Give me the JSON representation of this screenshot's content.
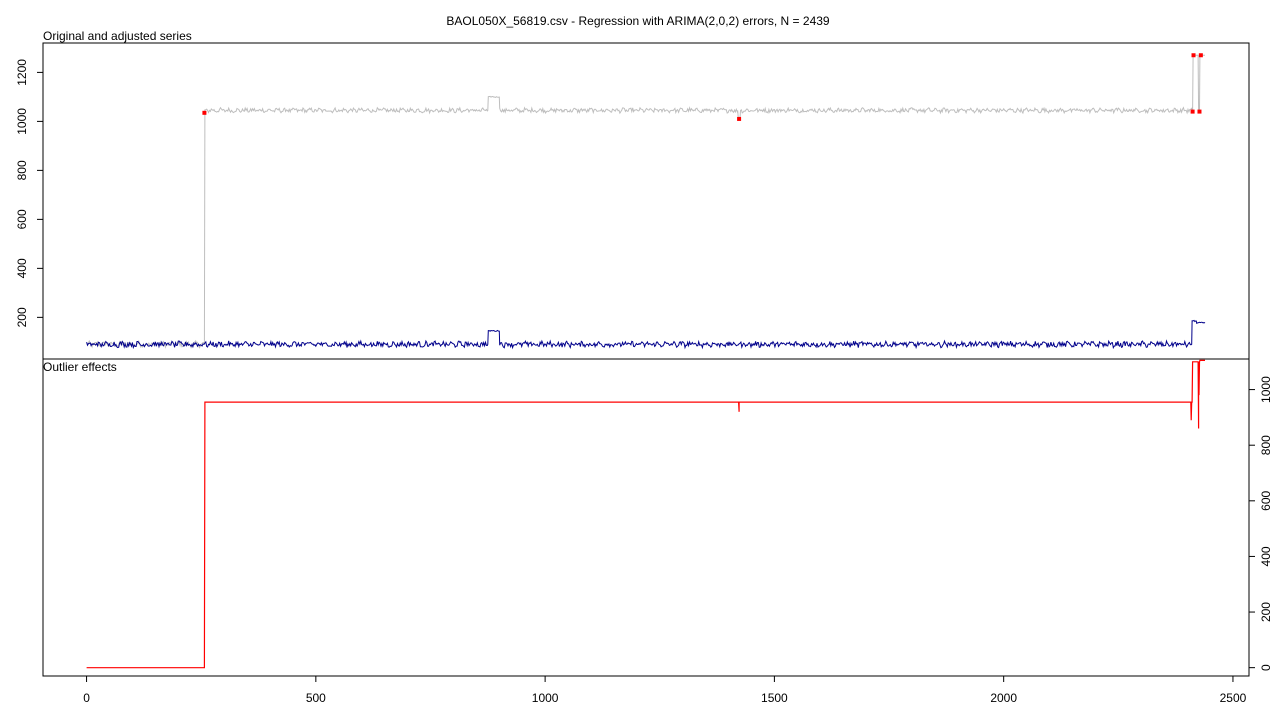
{
  "title": "BAOL050X_56819.csv - Regression with ARIMA(2,0,2) errors, N = 2439",
  "chart_data": [
    {
      "type": "line",
      "title": "Original and adjusted series",
      "xlim": [
        -95,
        2535
      ],
      "ylim": [
        30,
        1320
      ],
      "x_ticks": [
        0,
        500,
        1000,
        1500,
        2000,
        2500
      ],
      "y_ticks": [
        200,
        400,
        600,
        800,
        1000,
        1200
      ],
      "y_axis_side": "left",
      "colors": {
        "original": "#bebebe",
        "adjusted": "#00008b",
        "outlier_points": "#ff0000"
      },
      "series": [
        {
          "role": "original",
          "segments": [
            {
              "x": [
                0,
                257
              ],
              "base": 90,
              "noise": 10
            },
            {
              "x": [
                258,
                875
              ],
              "base": 1045,
              "noise": 8
            },
            {
              "x": [
                876,
                900
              ],
              "base": 1100,
              "noise": 2
            },
            {
              "x": [
                901,
                1420
              ],
              "base": 1045,
              "noise": 8
            },
            {
              "x": [
                1421,
                1425
              ],
              "base": 1015,
              "noise": 3
            },
            {
              "x": [
                1426,
                2410
              ],
              "base": 1045,
              "noise": 8
            },
            {
              "x": [
                2411,
                2412
              ],
              "base": 1040,
              "noise": 0
            },
            {
              "x": [
                2413,
                2424
              ],
              "base": 1270,
              "noise": 0
            },
            {
              "x": [
                2425,
                2427
              ],
              "base": 1040,
              "noise": 0
            },
            {
              "x": [
                2428,
                2439
              ],
              "base": 1270,
              "noise": 0
            }
          ]
        },
        {
          "role": "adjusted",
          "segments": [
            {
              "x": [
                0,
                875
              ],
              "base": 90,
              "noise": 10
            },
            {
              "x": [
                876,
                900
              ],
              "base": 145,
              "noise": 2
            },
            {
              "x": [
                901,
                2410
              ],
              "base": 90,
              "noise": 10
            },
            {
              "x": [
                2411,
                2420
              ],
              "base": 185,
              "noise": 3
            },
            {
              "x": [
                2421,
                2439
              ],
              "base": 178,
              "noise": 2
            }
          ]
        }
      ],
      "outlier_points": [
        {
          "x": 257,
          "y": 1035
        },
        {
          "x": 1423,
          "y": 1010
        },
        {
          "x": 2412,
          "y": 1040
        },
        {
          "x": 2414,
          "y": 1270
        },
        {
          "x": 2427,
          "y": 1040
        },
        {
          "x": 2430,
          "y": 1270
        }
      ]
    },
    {
      "type": "line",
      "title": "Outlier effects",
      "xlim": [
        -95,
        2535
      ],
      "ylim": [
        -30,
        1110
      ],
      "x_ticks": [
        0,
        500,
        1000,
        1500,
        2000,
        2500
      ],
      "y_ticks": [
        0,
        200,
        400,
        600,
        800,
        1000
      ],
      "y_axis_side": "right",
      "colors": {
        "effects": "#ff0000"
      },
      "series": [
        {
          "role": "effects",
          "x": [
            0,
            257,
            258,
            1422,
            1423,
            1423,
            1424,
            2408,
            2409,
            2410,
            2411,
            2412,
            2413,
            2424,
            2425,
            2425,
            2426,
            2427,
            2428,
            2439
          ],
          "y": [
            0,
            0,
            955,
            955,
            920,
            955,
            955,
            955,
            890,
            955,
            955,
            1100,
            1100,
            1100,
            860,
            1100,
            980,
            1100,
            1105,
            1105
          ]
        }
      ]
    }
  ]
}
